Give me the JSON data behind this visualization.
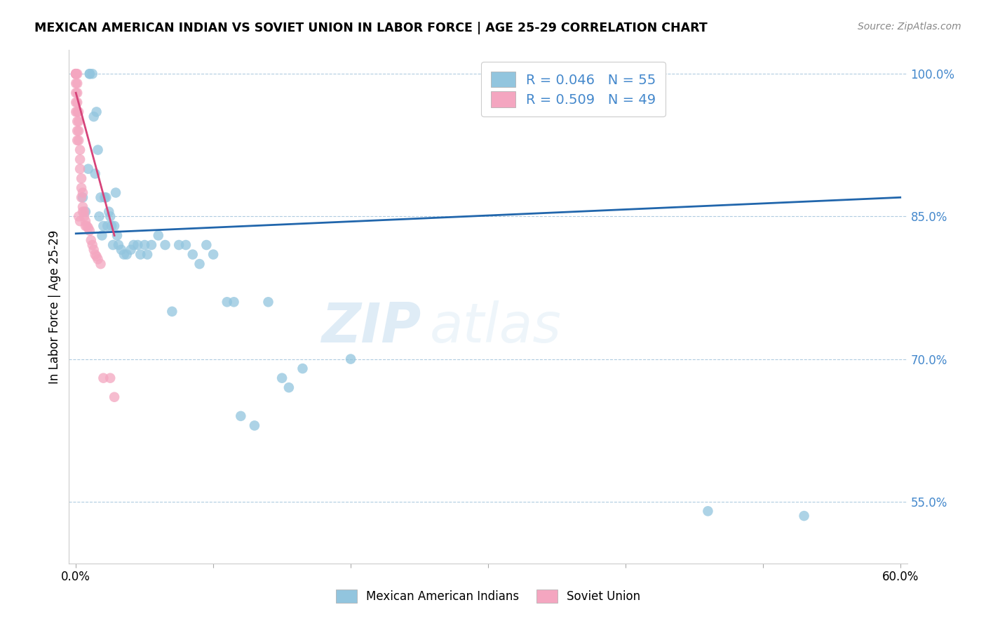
{
  "title": "MEXICAN AMERICAN INDIAN VS SOVIET UNION IN LABOR FORCE | AGE 25-29 CORRELATION CHART",
  "source": "Source: ZipAtlas.com",
  "ylabel": "In Labor Force | Age 25-29",
  "xlim": [
    -0.005,
    0.605
  ],
  "ylim": [
    0.485,
    1.025
  ],
  "yticks": [
    0.55,
    0.7,
    0.85,
    1.0
  ],
  "yticklabels": [
    "55.0%",
    "70.0%",
    "85.0%",
    "100.0%"
  ],
  "ygridticks": [
    0.55,
    0.7,
    0.85,
    1.0
  ],
  "blue_color": "#92c5de",
  "pink_color": "#f4a6c0",
  "blue_line_color": "#2166ac",
  "pink_line_color": "#d6437a",
  "blue_r": 0.046,
  "blue_n": 55,
  "pink_r": 0.509,
  "pink_n": 49,
  "legend_label_blue": "Mexican American Indians",
  "legend_label_pink": "Soviet Union",
  "watermark_zip": "ZIP",
  "watermark_atlas": "atlas",
  "blue_x": [
    0.005,
    0.007,
    0.009,
    0.01,
    0.01,
    0.012,
    0.013,
    0.014,
    0.015,
    0.016,
    0.017,
    0.018,
    0.019,
    0.02,
    0.021,
    0.022,
    0.023,
    0.024,
    0.025,
    0.026,
    0.027,
    0.028,
    0.029,
    0.03,
    0.031,
    0.033,
    0.035,
    0.037,
    0.04,
    0.042,
    0.045,
    0.047,
    0.05,
    0.052,
    0.055,
    0.06,
    0.065,
    0.07,
    0.075,
    0.08,
    0.085,
    0.09,
    0.095,
    0.1,
    0.11,
    0.115,
    0.12,
    0.13,
    0.14,
    0.15,
    0.155,
    0.165,
    0.2,
    0.46,
    0.53
  ],
  "blue_y": [
    0.87,
    0.855,
    0.9,
    1.0,
    1.0,
    1.0,
    0.955,
    0.895,
    0.96,
    0.92,
    0.85,
    0.87,
    0.83,
    0.84,
    0.87,
    0.87,
    0.84,
    0.855,
    0.85,
    0.84,
    0.82,
    0.84,
    0.875,
    0.83,
    0.82,
    0.815,
    0.81,
    0.81,
    0.815,
    0.82,
    0.82,
    0.81,
    0.82,
    0.81,
    0.82,
    0.83,
    0.82,
    0.75,
    0.82,
    0.82,
    0.81,
    0.8,
    0.82,
    0.81,
    0.76,
    0.76,
    0.64,
    0.63,
    0.76,
    0.68,
    0.67,
    0.69,
    0.7,
    0.54,
    0.535
  ],
  "pink_x": [
    0.0,
    0.0,
    0.0,
    0.0,
    0.0,
    0.0,
    0.0,
    0.0,
    0.0,
    0.001,
    0.001,
    0.001,
    0.001,
    0.001,
    0.001,
    0.001,
    0.001,
    0.002,
    0.002,
    0.002,
    0.002,
    0.002,
    0.003,
    0.003,
    0.003,
    0.003,
    0.004,
    0.004,
    0.004,
    0.005,
    0.005,
    0.005,
    0.006,
    0.006,
    0.007,
    0.007,
    0.008,
    0.009,
    0.01,
    0.011,
    0.012,
    0.013,
    0.014,
    0.015,
    0.016,
    0.018,
    0.02,
    0.025,
    0.028
  ],
  "pink_y": [
    1.0,
    1.0,
    1.0,
    1.0,
    1.0,
    0.99,
    0.98,
    0.97,
    0.96,
    1.0,
    0.99,
    0.98,
    0.97,
    0.96,
    0.95,
    0.94,
    0.93,
    0.96,
    0.95,
    0.94,
    0.93,
    0.85,
    0.92,
    0.91,
    0.9,
    0.845,
    0.89,
    0.88,
    0.87,
    0.875,
    0.86,
    0.855,
    0.855,
    0.85,
    0.845,
    0.84,
    0.84,
    0.838,
    0.835,
    0.825,
    0.82,
    0.815,
    0.81,
    0.808,
    0.805,
    0.8,
    0.68,
    0.68,
    0.66
  ],
  "blue_line_x0": 0.0,
  "blue_line_y0": 0.832,
  "blue_line_x1": 0.6,
  "blue_line_y1": 0.87,
  "pink_line_x0": 0.0,
  "pink_line_y0": 0.98,
  "pink_line_x1": 0.028,
  "pink_line_y1": 0.83
}
